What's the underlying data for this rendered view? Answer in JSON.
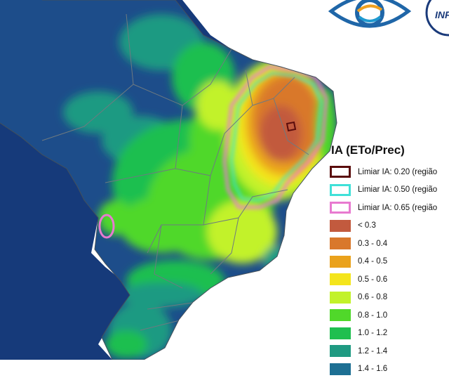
{
  "legend": {
    "title": "IA (ETo/Prec)",
    "thresholds": [
      {
        "label": "Limiar IA: 0.20 (região",
        "color": "#5a0c0c"
      },
      {
        "label": "Limiar IA: 0.50 (região",
        "color": "#40e0d8"
      },
      {
        "label": "Limiar IA: 0.65 (região",
        "color": "#e87ad0"
      }
    ],
    "classes": [
      {
        "label": "< 0.3",
        "color": "#c25a3e"
      },
      {
        "label": "0.3 - 0.4",
        "color": "#d9782c"
      },
      {
        "label": "0.4 - 0.5",
        "color": "#eaa21c"
      },
      {
        "label": "0.5 - 0.6",
        "color": "#f4e51c"
      },
      {
        "label": "0.6 - 0.8",
        "color": "#c2f22a"
      },
      {
        "label": "0.8 - 1.0",
        "color": "#50d82a"
      },
      {
        "label": "1.0 - 1.2",
        "color": "#1fbf4f"
      },
      {
        "label": "1.2 - 1.4",
        "color": "#1f9a82"
      },
      {
        "label": "1.4 - 1.6",
        "color": "#1d6f93"
      }
    ]
  },
  "colors": {
    "ocean": "#ffffff",
    "neighbor_land": "#163a7a",
    "state_borders": "#6e7a80",
    "humid_dark": "#1d4d8a"
  },
  "logos": [
    {
      "icon": "inpe-eye-logo-icon"
    },
    {
      "icon": "partner-logo-icon"
    }
  ]
}
